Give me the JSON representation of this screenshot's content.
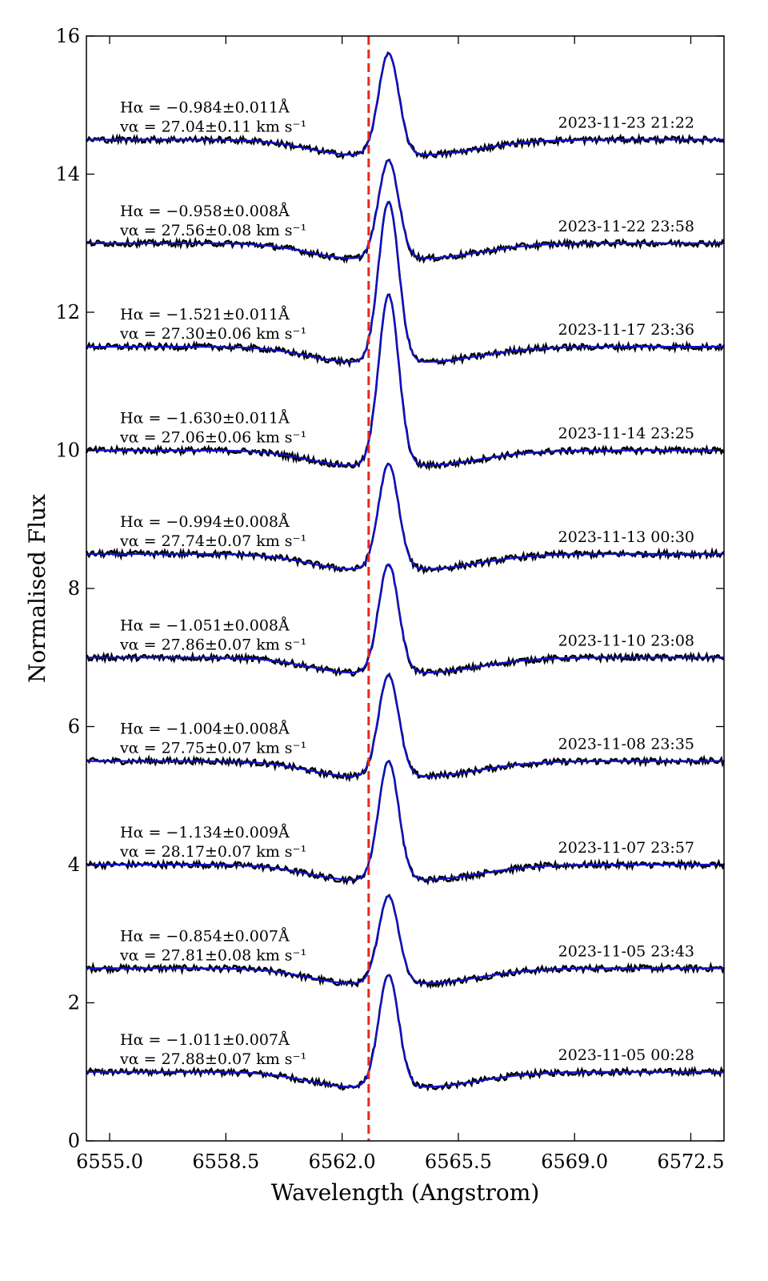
{
  "chart_data": {
    "type": "line",
    "title": "",
    "xlabel": "Wavelength (Angstrom)",
    "ylabel": "Normalised Flux",
    "xlim": [
      6554.3,
      6573.5
    ],
    "ylim": [
      0,
      16
    ],
    "xticks": [
      6555.0,
      6558.5,
      6562.0,
      6565.5,
      6569.0,
      6572.5
    ],
    "xtick_labels": [
      "6555.0",
      "6558.5",
      "6562.0",
      "6565.5",
      "6569.0",
      "6572.5"
    ],
    "yticks": [
      0,
      2,
      4,
      6,
      8,
      10,
      12,
      14,
      16
    ],
    "ytick_labels": [
      "0",
      "2",
      "4",
      "6",
      "8",
      "10",
      "12",
      "14",
      "16"
    ],
    "reference_line": {
      "x": 6562.8,
      "style": "dashed",
      "color": "#e8291c"
    },
    "colors": {
      "observed": "#000000",
      "model": "#1010d0",
      "reference": "#e8291c"
    },
    "line_profile": {
      "center": 6563.4,
      "sigma": 0.3,
      "absorption_depth": 0.22,
      "absorption_center_blue": 6562.4,
      "absorption_center_red": 6564.4
    },
    "series": [
      {
        "name": "2023-11-05 00:28",
        "date": "2023-11-05 00:28",
        "baseline": 1.0,
        "peak": 2.4,
        "ha": "Hα = −1.011±0.007Å",
        "va": "vα = 27.88±0.07 km s⁻¹"
      },
      {
        "name": "2023-11-05 23:43",
        "date": "2023-11-05 23:43",
        "baseline": 2.5,
        "peak": 3.55,
        "ha": "Hα = −0.854±0.007Å",
        "va": "vα = 27.81±0.08 km s⁻¹"
      },
      {
        "name": "2023-11-07 23:57",
        "date": "2023-11-07 23:57",
        "baseline": 4.0,
        "peak": 5.5,
        "ha": "Hα = −1.134±0.009Å",
        "va": "vα = 28.17±0.07 km s⁻¹"
      },
      {
        "name": "2023-11-08 23:35",
        "date": "2023-11-08 23:35",
        "baseline": 5.5,
        "peak": 6.75,
        "ha": "Hα = −1.004±0.008Å",
        "va": "vα = 27.75±0.07 km s⁻¹"
      },
      {
        "name": "2023-11-10 23:08",
        "date": "2023-11-10 23:08",
        "baseline": 7.0,
        "peak": 8.35,
        "ha": "Hα = −1.051±0.008Å",
        "va": "vα = 27.86±0.07 km s⁻¹"
      },
      {
        "name": "2023-11-13 00:30",
        "date": "2023-11-13 00:30",
        "baseline": 8.5,
        "peak": 9.8,
        "ha": "Hα = −0.994±0.008Å",
        "va": "vα = 27.74±0.07 km s⁻¹"
      },
      {
        "name": "2023-11-14 23:25",
        "date": "2023-11-14 23:25",
        "baseline": 10.0,
        "peak": 12.25,
        "ha": "Hα = −1.630±0.011Å",
        "va": "vα = 27.06±0.06 km s⁻¹"
      },
      {
        "name": "2023-11-17 23:36",
        "date": "2023-11-17 23:36",
        "baseline": 11.5,
        "peak": 13.6,
        "ha": "Hα = −1.521±0.011Å",
        "va": "vα = 27.30±0.06 km s⁻¹"
      },
      {
        "name": "2023-11-22 23:58",
        "date": "2023-11-22 23:58",
        "baseline": 13.0,
        "peak": 14.2,
        "ha": "Hα = −0.958±0.008Å",
        "va": "vα = 27.56±0.08 km s⁻¹"
      },
      {
        "name": "2023-11-23 21:22",
        "date": "2023-11-23 21:22",
        "baseline": 14.5,
        "peak": 15.75,
        "ha": "Hα = −0.984±0.011Å",
        "va": "vα = 27.04±0.11 km s⁻¹"
      }
    ]
  }
}
